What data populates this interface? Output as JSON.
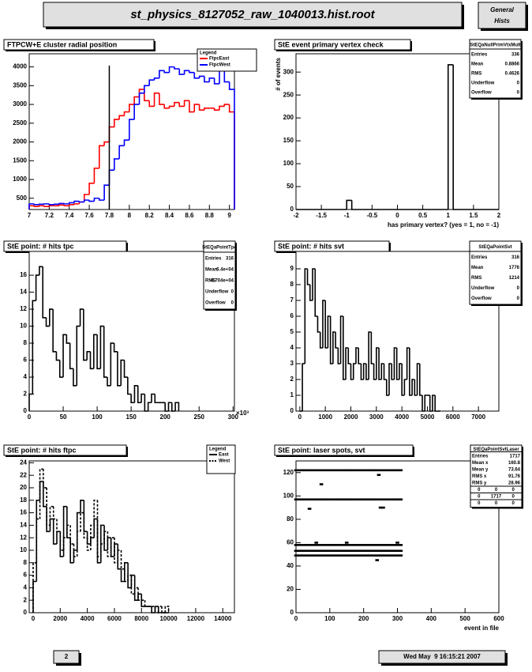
{
  "header": {
    "title": "st_physics_8127052_raw_1040013.hist.root",
    "tab": [
      "General",
      "Hists"
    ]
  },
  "footer": {
    "page": "2",
    "date": "Wed May  9 16:15:21 2007"
  },
  "chart_data": [
    {
      "type": "histogram",
      "title": "FTPCW+E cluster radial position",
      "bins": [
        7.0,
        7.05,
        7.1,
        7.15,
        7.2,
        7.25,
        7.3,
        7.35,
        7.4,
        7.45,
        7.5,
        7.55,
        7.6,
        7.65,
        7.7,
        7.75,
        7.8,
        7.85,
        7.9,
        7.95,
        8.0,
        8.05,
        8.1,
        8.15,
        8.2,
        8.25,
        8.3,
        8.35,
        8.4,
        8.45,
        8.5,
        8.55,
        8.6,
        8.65,
        8.7,
        8.75,
        8.8,
        8.85,
        8.9,
        8.95,
        9.0,
        9.05
      ],
      "series": [
        {
          "name": "FtpcEast",
          "color": "#ff0000",
          "values": [
            300,
            280,
            300,
            280,
            300,
            300,
            320,
            300,
            330,
            350,
            400,
            600,
            900,
            1300,
            1900,
            2000,
            2400,
            2600,
            2700,
            2800,
            3000,
            3200,
            3400,
            3100,
            2950,
            3300,
            3000,
            2900,
            2950,
            3050,
            2950,
            3100,
            2800,
            3000,
            2850,
            2900,
            2900,
            2850,
            2950,
            3000,
            2800
          ]
        },
        {
          "name": "FtpcWest",
          "color": "#0000ff",
          "values": [
            350,
            330,
            340,
            350,
            330,
            340,
            360,
            350,
            380,
            420,
            400,
            450,
            420,
            500,
            450,
            850,
            1250,
            1550,
            1900,
            2050,
            2600,
            3000,
            3300,
            3500,
            3650,
            3700,
            3900,
            3850,
            4000,
            3950,
            3800,
            3900,
            3850,
            3700,
            3750,
            3600,
            3700,
            3550,
            3900,
            3600,
            3400
          ]
        }
      ],
      "vline": 7.8,
      "legend": {
        "title": "Legend"
      },
      "xlim": [
        7,
        9.05
      ],
      "xticks": [
        7,
        7.2,
        7.4,
        7.6,
        7.8,
        8,
        8.2,
        8.4,
        8.6,
        8.8,
        9
      ],
      "ylim": [
        200,
        4350
      ],
      "yticks": [
        500,
        1000,
        1500,
        2000,
        2500,
        3000,
        3500,
        4000
      ]
    },
    {
      "type": "histogram",
      "title": "StE event primary vertex check",
      "xlabel": "has primary vertex? (yes = 1, no = -1)",
      "ylabel": "# of events",
      "bins": [
        -2,
        -1,
        -0.9,
        1,
        1.1,
        2
      ],
      "series": [
        {
          "color": "#000000",
          "values": [
            0,
            20,
            0,
            316,
            0
          ]
        }
      ],
      "stats": {
        "name": "StEQaNullPrimVtxMult",
        "rows": [
          [
            "Entries",
            "336"
          ],
          [
            "Mean",
            "0.8866"
          ],
          [
            "RMS",
            "0.4626"
          ],
          [
            "Underflow",
            "0"
          ],
          [
            "Overflow",
            "0"
          ]
        ]
      },
      "xlim": [
        -2,
        2
      ],
      "xticks": [
        -2,
        -1.5,
        -1,
        -0.5,
        0,
        0.5,
        1,
        1.5,
        2
      ],
      "ylim": [
        0,
        340
      ],
      "yticks": [
        0,
        50,
        100,
        150,
        200,
        250,
        300
      ]
    },
    {
      "type": "histogram",
      "title": "StE point: # hits tpc",
      "x_exponent": "×10³",
      "bins": [
        0,
        5,
        10,
        15,
        20,
        25,
        30,
        35,
        40,
        45,
        50,
        55,
        60,
        65,
        70,
        75,
        80,
        85,
        90,
        95,
        100,
        105,
        110,
        115,
        120,
        125,
        130,
        135,
        140,
        145,
        150,
        155,
        160,
        165,
        170,
        175,
        180,
        185,
        190,
        195,
        200,
        205,
        210,
        215,
        220
      ],
      "series": [
        {
          "color": "#000000",
          "values": [
            2,
            13,
            16,
            17,
            11,
            10,
            12,
            7,
            6,
            4,
            9,
            8,
            5,
            3,
            10,
            12,
            6,
            7,
            5,
            9,
            5,
            10,
            4,
            3,
            8,
            7,
            3,
            6,
            4,
            2,
            1,
            3,
            1,
            2,
            0,
            1,
            2,
            1,
            1,
            1,
            0,
            1,
            0,
            1
          ]
        }
      ],
      "stats": {
        "name": "StEQaPointTpc",
        "rows": [
          [
            "Entries",
            "316"
          ],
          [
            "Mean",
            "6.4e+04"
          ],
          [
            "RMS",
            "4.704e+04"
          ],
          [
            "Underflow",
            "0"
          ],
          [
            "Overflow",
            "0"
          ]
        ]
      },
      "xlim": [
        0,
        302
      ],
      "xticks": [
        0,
        50,
        100,
        150,
        200,
        250,
        300
      ],
      "ylim": [
        0,
        18.8
      ],
      "yticks": [
        0,
        2,
        4,
        6,
        8,
        10,
        12,
        14,
        16
      ]
    },
    {
      "type": "histogram",
      "title": "StE point: # hits svt",
      "bins": [
        0,
        100,
        200,
        300,
        400,
        500,
        600,
        700,
        800,
        900,
        1000,
        1100,
        1200,
        1300,
        1400,
        1500,
        1600,
        1700,
        1800,
        1900,
        2000,
        2100,
        2200,
        2300,
        2400,
        2500,
        2600,
        2700,
        2800,
        2900,
        3000,
        3100,
        3200,
        3300,
        3400,
        3500,
        3600,
        3700,
        3800,
        3900,
        4000,
        4100,
        4200,
        4300,
        4400,
        4500,
        4600,
        4700,
        4800,
        4900,
        5000,
        5100,
        5200,
        5300,
        5400,
        5500
      ],
      "series": [
        {
          "color": "#000000",
          "values": [
            0,
            3,
            9,
            8,
            7,
            9,
            6,
            5,
            4,
            7,
            4,
            6,
            3,
            5,
            4,
            3,
            6,
            2,
            4,
            3,
            2,
            3,
            4,
            3,
            2,
            3,
            2,
            5,
            3,
            2,
            4,
            2,
            3,
            2,
            1,
            3,
            2,
            4,
            2,
            3,
            1,
            2,
            4,
            1,
            2,
            1,
            3,
            1,
            0,
            1,
            1,
            0,
            1,
            0,
            0
          ]
        }
      ],
      "stats": {
        "name": "StEQaPointSvt",
        "rows": [
          [
            "Entries",
            "316"
          ],
          [
            "Mean",
            "1776"
          ],
          [
            "RMS",
            "1214"
          ],
          [
            "Underflow",
            "0"
          ],
          [
            "Overflow",
            "0"
          ]
        ]
      },
      "xlim": [
        -150,
        7800
      ],
      "xticks": [
        0,
        1000,
        2000,
        3000,
        4000,
        5000,
        6000,
        7000
      ],
      "ylim": [
        0,
        10.1
      ],
      "yticks": [
        0,
        1,
        2,
        3,
        4,
        5,
        6,
        7,
        8,
        9
      ]
    },
    {
      "type": "histogram",
      "title": "StE point: # hits ftpc",
      "bins": [
        0,
        250,
        500,
        750,
        1000,
        1250,
        1500,
        1750,
        2000,
        2250,
        2500,
        2750,
        3000,
        3250,
        3500,
        3750,
        4000,
        4250,
        4500,
        4750,
        5000,
        5250,
        5500,
        5750,
        6000,
        6250,
        6500,
        6750,
        7000,
        7250,
        7500,
        7750,
        8000,
        8250,
        8500,
        8750,
        9000,
        9250,
        9500,
        9750,
        10000
      ],
      "series": [
        {
          "name": "East",
          "color": "#000000",
          "dash": false,
          "values": [
            5,
            18,
            21,
            17,
            13,
            15,
            11,
            13,
            9,
            17,
            12,
            8,
            10,
            16,
            18,
            13,
            11,
            12,
            15,
            8,
            14,
            10,
            12,
            9,
            11,
            7,
            5,
            8,
            4,
            6,
            2,
            3,
            1,
            1,
            1,
            0,
            1,
            0,
            0,
            0
          ]
        },
        {
          "name": "West",
          "color": "#000000",
          "dash": true,
          "values": [
            8,
            15,
            23,
            20,
            14,
            17,
            15,
            13,
            10,
            12,
            14,
            11,
            9,
            13,
            16,
            12,
            10,
            14,
            18,
            9,
            11,
            13,
            9,
            12,
            8,
            10,
            7,
            5,
            6,
            3,
            4,
            2,
            2,
            1,
            1,
            1,
            0,
            1,
            0,
            1
          ]
        }
      ],
      "legend": {
        "title": "Legend"
      },
      "xlim": [
        -290,
        14860
      ],
      "xticks": [
        0,
        2000,
        4000,
        6000,
        8000,
        10000,
        12000,
        14000
      ],
      "ylim": [
        0,
        24.3
      ],
      "yticks": [
        0,
        2,
        4,
        6,
        8,
        10,
        12,
        14,
        16,
        18,
        20,
        22,
        24
      ]
    },
    {
      "type": "scatter",
      "title": "StE point: laser spots, svt",
      "xlabel": "event in file",
      "series": [
        {
          "color": "#000000",
          "x": [
            0,
            10,
            20,
            30,
            40,
            50,
            60,
            70,
            80,
            90,
            100,
            110,
            120,
            130,
            140,
            150,
            160,
            170,
            180,
            190,
            200,
            210,
            220,
            230,
            240,
            250,
            260,
            270,
            280,
            290,
            300,
            310
          ],
          "values": [
            122,
            122,
            122,
            122,
            122,
            122,
            122,
            122,
            122,
            122,
            122,
            122,
            122,
            122,
            122,
            122,
            122,
            122,
            122,
            122,
            122,
            122,
            122,
            122,
            122,
            122,
            122,
            122,
            122,
            122,
            122,
            122
          ]
        },
        {
          "color": "#000000",
          "x": [
            0,
            10,
            20,
            30,
            40,
            50,
            60,
            70,
            80,
            90,
            100,
            110,
            120,
            130,
            140,
            150,
            160,
            170,
            180,
            190,
            200,
            210,
            220,
            230,
            240,
            250,
            260,
            270,
            280,
            290,
            300,
            310
          ],
          "values": [
            97,
            97,
            97,
            97,
            97,
            97,
            97,
            97,
            97,
            97,
            97,
            97,
            97,
            97,
            97,
            97,
            97,
            97,
            97,
            97,
            97,
            97,
            97,
            97,
            97,
            97,
            97,
            97,
            97,
            97,
            97,
            97
          ]
        },
        {
          "color": "#000000",
          "x": [
            0,
            10,
            20,
            30,
            40,
            50,
            60,
            70,
            80,
            90,
            100,
            110,
            120,
            130,
            140,
            150,
            160,
            170,
            180,
            190,
            200,
            210,
            220,
            230,
            240,
            250,
            260,
            270,
            280,
            290,
            300,
            310
          ],
          "values": [
            58,
            58,
            58,
            58,
            58,
            58,
            58,
            58,
            58,
            58,
            58,
            58,
            58,
            58,
            58,
            58,
            58,
            58,
            58,
            58,
            58,
            58,
            58,
            58,
            58,
            58,
            58,
            58,
            58,
            58,
            58,
            58
          ]
        },
        {
          "color": "#000000",
          "x": [
            0,
            10,
            20,
            30,
            40,
            50,
            60,
            70,
            80,
            90,
            100,
            110,
            120,
            130,
            140,
            150,
            160,
            170,
            180,
            190,
            200,
            210,
            220,
            230,
            240,
            250,
            260,
            270,
            280,
            290,
            300,
            310
          ],
          "values": [
            53,
            53,
            53,
            53,
            53,
            53,
            53,
            53,
            53,
            53,
            53,
            53,
            53,
            53,
            53,
            53,
            53,
            53,
            53,
            53,
            53,
            53,
            53,
            53,
            53,
            53,
            53,
            53,
            53,
            53,
            53,
            53
          ]
        },
        {
          "color": "#000000",
          "x": [
            0,
            10,
            20,
            30,
            40,
            50,
            60,
            70,
            80,
            90,
            100,
            110,
            120,
            130,
            140,
            150,
            160,
            170,
            180,
            190,
            200,
            210,
            220,
            230,
            240,
            250,
            260,
            270,
            280,
            290,
            300,
            310
          ],
          "values": [
            49,
            49,
            49,
            49,
            49,
            49,
            49,
            49,
            49,
            49,
            49,
            49,
            49,
            49,
            49,
            49,
            49,
            49,
            49,
            49,
            49,
            49,
            49,
            49,
            49,
            49,
            49,
            49,
            49,
            49,
            49,
            49
          ]
        },
        {
          "color": "#000000",
          "x": [
            75,
            245,
            40,
            250,
            258,
            300,
            240,
            60,
            150
          ],
          "values": [
            110,
            118,
            89,
            90,
            90,
            60,
            45,
            60,
            60
          ]
        }
      ],
      "stats": {
        "name": "StEQaPointSvtLaser",
        "rows": [
          [
            "Entries",
            "1717"
          ],
          [
            "Mean x",
            "160.8"
          ],
          [
            "Mean y",
            "73.64"
          ],
          [
            "RMS x",
            "91.76"
          ],
          [
            "RMS y",
            "28.96"
          ]
        ],
        "grid": [
          [
            "0",
            "0",
            "0"
          ],
          [
            "0",
            "1717",
            "0"
          ],
          [
            "0",
            "0",
            "0"
          ]
        ]
      },
      "xlim": [
        0,
        600
      ],
      "xticks": [
        0,
        100,
        200,
        300,
        400,
        500,
        600
      ],
      "ylim": [
        0,
        130
      ],
      "yticks": [
        0,
        20,
        40,
        60,
        80,
        100,
        120
      ]
    }
  ]
}
